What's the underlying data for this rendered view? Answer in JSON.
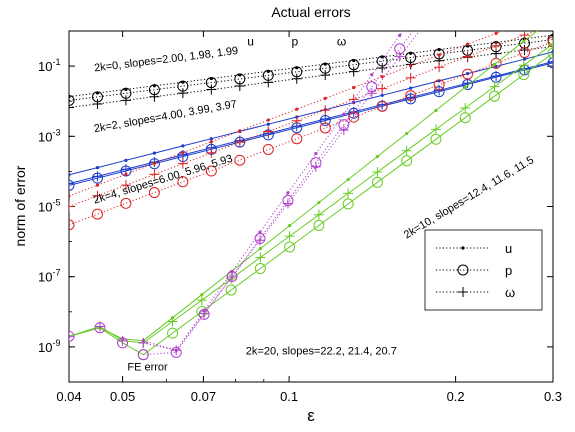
{
  "chart_data": {
    "type": "line",
    "title": "Actual errors",
    "xlabel": "ε",
    "ylabel": "norm of error",
    "xscale": "log",
    "yscale": "log",
    "xlim": [
      0.04,
      0.3
    ],
    "ylim": [
      1e-10,
      1
    ],
    "x_ticks": [
      {
        "value": 0.04,
        "label": "0.04"
      },
      {
        "value": 0.05,
        "label": "0.05"
      },
      {
        "value": 0.07,
        "label": "0.07"
      },
      {
        "value": 0.1,
        "label": "0.1"
      },
      {
        "value": 0.2,
        "label": "0.2"
      },
      {
        "value": 0.3,
        "label": "0.3"
      }
    ],
    "y_ticks": [
      {
        "value": 1e-09,
        "base": "10",
        "exp": "-9"
      },
      {
        "value": 1e-07,
        "base": "10",
        "exp": "-7"
      },
      {
        "value": 1e-05,
        "base": "10",
        "exp": "-5"
      },
      {
        "value": 0.001,
        "base": "10",
        "exp": "-3"
      },
      {
        "value": 0.1,
        "base": "10",
        "exp": "-1"
      }
    ],
    "legend": {
      "placement": "right",
      "entries": [
        {
          "label": "u",
          "marker": "dot"
        },
        {
          "label": "p",
          "marker": "circle"
        },
        {
          "label": "ω",
          "marker": "plus"
        }
      ]
    },
    "groups": [
      {
        "k2": 0,
        "color": "#000000",
        "style": "dotted",
        "x_start": 0.04,
        "x_end": 0.3,
        "series": [
          {
            "variable": "u",
            "start": 0.0135,
            "slope": 2.0
          },
          {
            "variable": "p",
            "start": 0.0105,
            "slope": 1.98
          },
          {
            "variable": "ω",
            "start": 0.0066,
            "slope": 1.99
          }
        ]
      },
      {
        "k2": 2,
        "color": "#1a3bcc",
        "style": "solid",
        "x_start": 0.04,
        "x_end": 0.3,
        "series": [
          {
            "variable": "u",
            "start": 8e-05,
            "slope": 4.0
          },
          {
            "variable": "p",
            "start": 4e-05,
            "slope": 3.99
          },
          {
            "variable": "ω",
            "start": 4.5e-05,
            "slope": 3.97
          }
        ]
      },
      {
        "k2": 4,
        "color": "#e02020",
        "style": "dotted",
        "x_start": 0.04,
        "x_end": 0.3,
        "series": [
          {
            "variable": "u",
            "start": 2e-05,
            "slope": 6.0
          },
          {
            "variable": "p",
            "start": 3e-06,
            "slope": 5.96
          },
          {
            "variable": "ω",
            "start": 1e-05,
            "slope": 5.93
          }
        ]
      },
      {
        "k2": 10,
        "color": "#66cc22",
        "style": "solid",
        "x_start": 0.0545,
        "x_end": 0.3,
        "series": [
          {
            "variable": "u",
            "start": 1.5e-09,
            "slope": 12.4
          },
          {
            "variable": "p",
            "start": 6e-10,
            "slope": 11.6
          },
          {
            "variable": "ω",
            "start": 1.3e-09,
            "slope": 11.5
          }
        ]
      },
      {
        "k2": 20,
        "color": "#b040cc",
        "style": "dotted",
        "x_start": 0.0625,
        "x_end": 0.2,
        "series": [
          {
            "variable": "u",
            "start": 8e-10,
            "slope": 22.2
          },
          {
            "variable": "p",
            "start": 7e-10,
            "slope": 21.4
          },
          {
            "variable": "ω",
            "start": 8e-10,
            "slope": 20.7
          }
        ]
      }
    ],
    "fe_error": {
      "color": "#000000",
      "x": [
        0.04,
        0.0455,
        0.05,
        0.0545
      ],
      "series": [
        {
          "variable": "u",
          "values": [
            2e-09,
            3.5e-09,
            1.7e-09,
            1.5e-09
          ]
        },
        {
          "variable": "p",
          "values": [
            2e-09,
            3.5e-09,
            1.3e-09,
            6e-10
          ]
        },
        {
          "variable": "ω",
          "values": [
            2e-09,
            3.8e-09,
            1.5e-09,
            1.3e-09
          ]
        }
      ]
    },
    "k20_tail": {
      "x": [
        0.0545,
        0.0625
      ],
      "series": [
        {
          "variable": "u",
          "values": [
            1.5e-09,
            8e-10
          ]
        },
        {
          "variable": "p",
          "values": [
            6e-10,
            7e-10
          ]
        },
        {
          "variable": "ω",
          "values": [
            1.3e-09,
            8e-10
          ]
        }
      ]
    },
    "annotations": [
      {
        "id": "hdr-u",
        "text": "u",
        "at": [
          0.084,
          0.38
        ]
      },
      {
        "id": "hdr-p",
        "text": "p",
        "at": [
          0.101,
          0.38
        ]
      },
      {
        "id": "hdr-w",
        "text": "ω",
        "at": [
          0.122,
          0.38
        ]
      },
      {
        "id": "ann-k0",
        "text": "2k=0, slopes=2.00, 1.98, 1.99",
        "at": [
          0.0445,
          0.07
        ],
        "rotate": -7
      },
      {
        "id": "ann-k2",
        "text": "2k=2, slopes=4.00, 3.99, 3.97",
        "at": [
          0.0445,
          0.0013
        ],
        "rotate": -10
      },
      {
        "id": "ann-k4",
        "text": "2k=4, slopes=6.00, 5.96, 5.93",
        "at": [
          0.0445,
          1.2e-05
        ],
        "rotate": -17
      },
      {
        "id": "ann-k10",
        "text": "2k=10, slopes=12.4, 11.6, 11.5",
        "at": [
          0.163,
          1.2e-06
        ],
        "rotate": -31
      },
      {
        "id": "ann-k20",
        "text": "2k=20, slopes=22.2, 21.4, 20.7",
        "at": [
          0.0835,
          6e-10
        ],
        "rotate": 0
      },
      {
        "id": "ann-fe",
        "text": "FE error",
        "at": [
          0.051,
          2.1e-10
        ],
        "rotate": 0
      }
    ]
  }
}
